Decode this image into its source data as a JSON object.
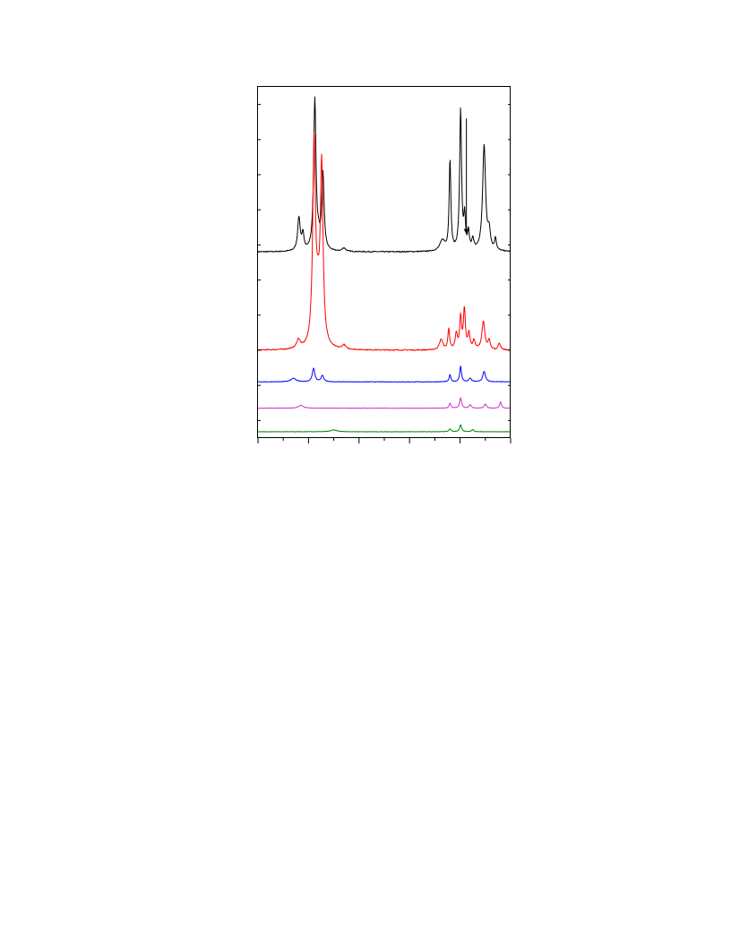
{
  "chart_data": {
    "type": "line",
    "title": "",
    "xlabel": "",
    "ylabel": "",
    "xlim": [
      0,
      10
    ],
    "ylim": [
      0,
      10
    ],
    "grid": false,
    "x_major_ticks": [
      0,
      2,
      4,
      6,
      8,
      10
    ],
    "x_minor_ticks": [
      1,
      3,
      5,
      7,
      9
    ],
    "y_ticks": [
      0.5,
      1.5,
      2.5,
      3.5,
      4.5,
      5.5,
      6.5,
      7.5,
      8.5,
      9.5
    ],
    "annotations": [
      {
        "name": "arrow",
        "x": 8.25,
        "y_from": 9.1,
        "y_to": 5.8,
        "color": "#000000"
      }
    ],
    "series": [
      {
        "color": "#000000",
        "baseline": 5.3,
        "noise": 0.03,
        "peaks": [
          {
            "x": 1.62,
            "h": 0.95,
            "w": 0.06
          },
          {
            "x": 1.78,
            "h": 0.45,
            "w": 0.05
          },
          {
            "x": 2.25,
            "h": 4.3,
            "w": 0.055
          },
          {
            "x": 2.57,
            "h": 2.15,
            "w": 0.055
          },
          {
            "x": 2.4,
            "h": 0.25,
            "w": 0.06
          },
          {
            "x": 3.4,
            "h": 0.1,
            "w": 0.08
          },
          {
            "x": 7.3,
            "h": 0.3,
            "w": 0.12
          },
          {
            "x": 7.6,
            "h": 2.6,
            "w": 0.04
          },
          {
            "x": 8.02,
            "h": 4.0,
            "w": 0.045
          },
          {
            "x": 8.18,
            "h": 0.9,
            "w": 0.04
          },
          {
            "x": 8.33,
            "h": 0.5,
            "w": 0.04
          },
          {
            "x": 8.5,
            "h": 0.3,
            "w": 0.05
          },
          {
            "x": 8.95,
            "h": 3.0,
            "w": 0.07
          },
          {
            "x": 9.15,
            "h": 0.5,
            "w": 0.06
          },
          {
            "x": 9.4,
            "h": 0.35,
            "w": 0.04
          }
        ]
      },
      {
        "color": "#ff0000",
        "baseline": 2.5,
        "noise": 0.03,
        "peaks": [
          {
            "x": 1.6,
            "h": 0.25,
            "w": 0.08
          },
          {
            "x": 2.22,
            "h": 5.8,
            "w": 0.065
          },
          {
            "x": 2.52,
            "h": 5.1,
            "w": 0.065
          },
          {
            "x": 2.37,
            "h": 1.0,
            "w": 0.08
          },
          {
            "x": 3.4,
            "h": 0.12,
            "w": 0.08
          },
          {
            "x": 7.25,
            "h": 0.3,
            "w": 0.08
          },
          {
            "x": 7.55,
            "h": 0.6,
            "w": 0.04
          },
          {
            "x": 7.85,
            "h": 0.45,
            "w": 0.05
          },
          {
            "x": 8.02,
            "h": 0.9,
            "w": 0.045
          },
          {
            "x": 8.17,
            "h": 1.15,
            "w": 0.045
          },
          {
            "x": 8.35,
            "h": 0.45,
            "w": 0.05
          },
          {
            "x": 8.55,
            "h": 0.25,
            "w": 0.05
          },
          {
            "x": 8.92,
            "h": 0.8,
            "w": 0.07
          },
          {
            "x": 9.15,
            "h": 0.25,
            "w": 0.05
          },
          {
            "x": 9.55,
            "h": 0.2,
            "w": 0.05
          }
        ]
      },
      {
        "color": "#0000ff",
        "baseline": 1.6,
        "noise": 0.015,
        "peaks": [
          {
            "x": 1.4,
            "h": 0.1,
            "w": 0.12
          },
          {
            "x": 2.2,
            "h": 0.38,
            "w": 0.06
          },
          {
            "x": 2.55,
            "h": 0.18,
            "w": 0.06
          },
          {
            "x": 7.6,
            "h": 0.2,
            "w": 0.04
          },
          {
            "x": 8.02,
            "h": 0.45,
            "w": 0.04
          },
          {
            "x": 8.4,
            "h": 0.1,
            "w": 0.06
          },
          {
            "x": 8.95,
            "h": 0.3,
            "w": 0.06
          }
        ]
      },
      {
        "color": "#cc33cc",
        "baseline": 0.85,
        "noise": 0.012,
        "peaks": [
          {
            "x": 1.7,
            "h": 0.08,
            "w": 0.12
          },
          {
            "x": 7.6,
            "h": 0.15,
            "w": 0.04
          },
          {
            "x": 8.02,
            "h": 0.3,
            "w": 0.045
          },
          {
            "x": 8.4,
            "h": 0.1,
            "w": 0.05
          },
          {
            "x": 9.0,
            "h": 0.12,
            "w": 0.05
          },
          {
            "x": 9.6,
            "h": 0.18,
            "w": 0.04
          }
        ]
      },
      {
        "color": "#008000",
        "baseline": 0.18,
        "noise": 0.01,
        "peaks": [
          {
            "x": 3.0,
            "h": 0.05,
            "w": 0.15
          },
          {
            "x": 7.6,
            "h": 0.08,
            "w": 0.05
          },
          {
            "x": 8.02,
            "h": 0.2,
            "w": 0.045
          },
          {
            "x": 8.5,
            "h": 0.06,
            "w": 0.05
          }
        ]
      }
    ]
  }
}
